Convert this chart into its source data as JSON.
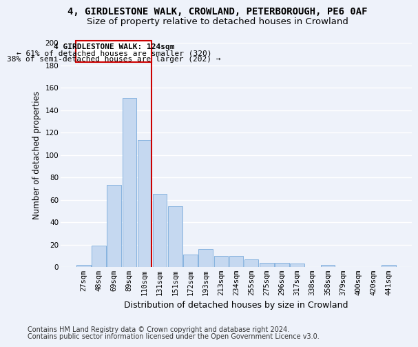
{
  "title": "4, GIRDLESTONE WALK, CROWLAND, PETERBOROUGH, PE6 0AF",
  "subtitle": "Size of property relative to detached houses in Crowland",
  "xlabel": "Distribution of detached houses by size in Crowland",
  "ylabel": "Number of detached properties",
  "bar_color": "#c5d8f0",
  "bar_edge_color": "#7aabdc",
  "categories": [
    "27sqm",
    "48sqm",
    "69sqm",
    "89sqm",
    "110sqm",
    "131sqm",
    "151sqm",
    "172sqm",
    "193sqm",
    "213sqm",
    "234sqm",
    "255sqm",
    "275sqm",
    "296sqm",
    "317sqm",
    "338sqm",
    "358sqm",
    "379sqm",
    "400sqm",
    "420sqm",
    "441sqm"
  ],
  "values": [
    2,
    19,
    73,
    151,
    113,
    65,
    54,
    11,
    16,
    10,
    10,
    7,
    4,
    4,
    3,
    0,
    2,
    0,
    0,
    0,
    2
  ],
  "ylim": [
    0,
    200
  ],
  "yticks": [
    0,
    20,
    40,
    60,
    80,
    100,
    120,
    140,
    160,
    180,
    200
  ],
  "property_label": "4 GIRDLESTONE WALK: 124sqm",
  "annotation_line1": "← 61% of detached houses are smaller (320)",
  "annotation_line2": "38% of semi-detached houses are larger (202) →",
  "vline_category_index": 4,
  "footnote1": "Contains HM Land Registry data © Crown copyright and database right 2024.",
  "footnote2": "Contains public sector information licensed under the Open Government Licence v3.0.",
  "background_color": "#eef2fa",
  "grid_color": "#ffffff",
  "annotation_box_color": "#ffffff",
  "annotation_box_edge": "#cc0000",
  "vline_color": "#cc0000",
  "title_fontsize": 10,
  "subtitle_fontsize": 9.5,
  "xlabel_fontsize": 9,
  "ylabel_fontsize": 8.5,
  "tick_fontsize": 7.5,
  "annotation_fontsize": 8,
  "footnote_fontsize": 7
}
